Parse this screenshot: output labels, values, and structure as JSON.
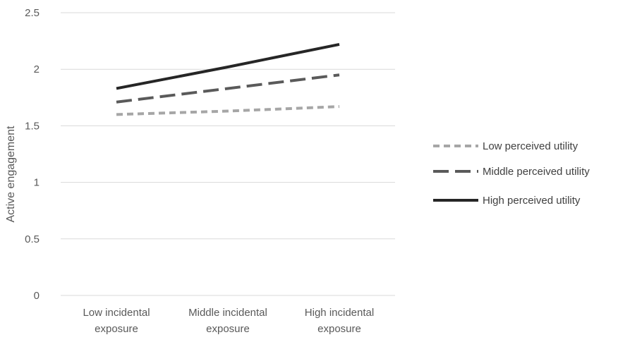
{
  "chart_data": {
    "type": "line",
    "title": "",
    "xlabel": "",
    "ylabel": "Active engagement",
    "ylim": [
      0,
      2.5
    ],
    "yticks": [
      "0",
      "0.5",
      "1",
      "1.5",
      "2",
      "2.5"
    ],
    "categories": [
      [
        "Low incidental",
        "exposure"
      ],
      [
        "Middle incidental",
        "exposure"
      ],
      [
        "High incidental",
        "exposure"
      ]
    ],
    "grid": "horizontal",
    "legend_position": "right",
    "series": [
      {
        "name": "Low perceived utility",
        "values": [
          1.6,
          1.63,
          1.67
        ],
        "color": "#a6a6a6",
        "dash": "short-dash"
      },
      {
        "name": "Middle perceived utility",
        "values": [
          1.71,
          1.83,
          1.95
        ],
        "color": "#5a5a5a",
        "dash": "long-dash"
      },
      {
        "name": "High perceived utility",
        "values": [
          1.83,
          2.02,
          2.22
        ],
        "color": "#262626",
        "dash": "solid"
      }
    ]
  }
}
